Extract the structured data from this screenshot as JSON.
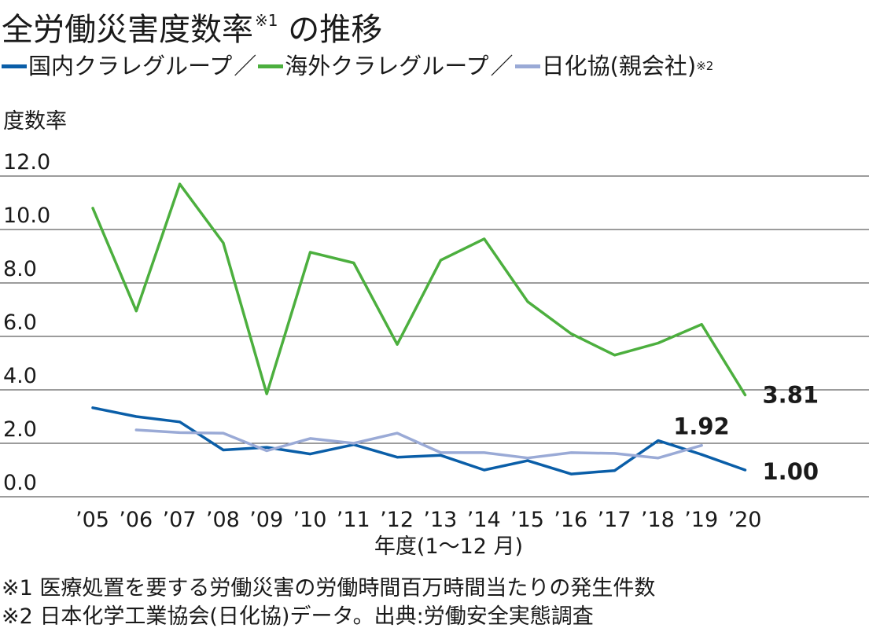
{
  "title": "全労働災害度数率",
  "title_note": "※1",
  "title_suffix": " の推移",
  "legend": [
    {
      "name": "国内クラレグループ",
      "color": "#0a5ea8"
    },
    {
      "name": "海外クラレグループ",
      "color": "#4caf3e"
    },
    {
      "name": "日化協(親会社)",
      "color": "#9aaad6",
      "note": "※2"
    }
  ],
  "legend_separator": "／",
  "ylabel": "度数率",
  "xlabel": "年度(1～12 月)",
  "notes": [
    "※1 医療処置を要する労働災害の労働時間百万時間当たりの発生件数",
    "※2 日本化学工業協会(日化協)データ。出典:労働安全実態調査"
  ],
  "chart_data": {
    "type": "line",
    "x": [
      "’05",
      "’06",
      "’07",
      "’08",
      "’09",
      "’10",
      "’11",
      "’12",
      "’13",
      "’14",
      "’15",
      "’16",
      "’17",
      "’18",
      "’19",
      "’20"
    ],
    "ylim": [
      0,
      12
    ],
    "yticks": [
      "0.0",
      "2.0",
      "4.0",
      "6.0",
      "8.0",
      "10.0",
      "12.0"
    ],
    "grid": true,
    "series": [
      {
        "name": "国内クラレグループ",
        "color": "#0a5ea8",
        "values": [
          3.33,
          3.0,
          2.8,
          1.75,
          1.85,
          1.6,
          1.95,
          1.48,
          1.55,
          1.0,
          1.35,
          0.85,
          0.98,
          2.1,
          1.58,
          1.0
        ]
      },
      {
        "name": "海外クラレグループ",
        "color": "#4caf3e",
        "values": [
          10.8,
          6.95,
          11.7,
          9.5,
          3.85,
          9.15,
          8.75,
          5.7,
          8.85,
          9.65,
          7.3,
          6.1,
          5.3,
          5.75,
          6.45,
          3.81
        ]
      },
      {
        "name": "日化協(親会社)",
        "color": "#9aaad6",
        "values": [
          null,
          2.5,
          2.4,
          2.38,
          1.72,
          2.18,
          2.0,
          2.38,
          1.65,
          1.65,
          1.45,
          1.65,
          1.62,
          1.45,
          1.92,
          null
        ]
      }
    ],
    "data_labels": [
      {
        "text": "3.81",
        "series": 1,
        "index": 15
      },
      {
        "text": "1.92",
        "series": 2,
        "index": 14
      },
      {
        "text": "1.00",
        "series": 0,
        "index": 15
      }
    ]
  }
}
